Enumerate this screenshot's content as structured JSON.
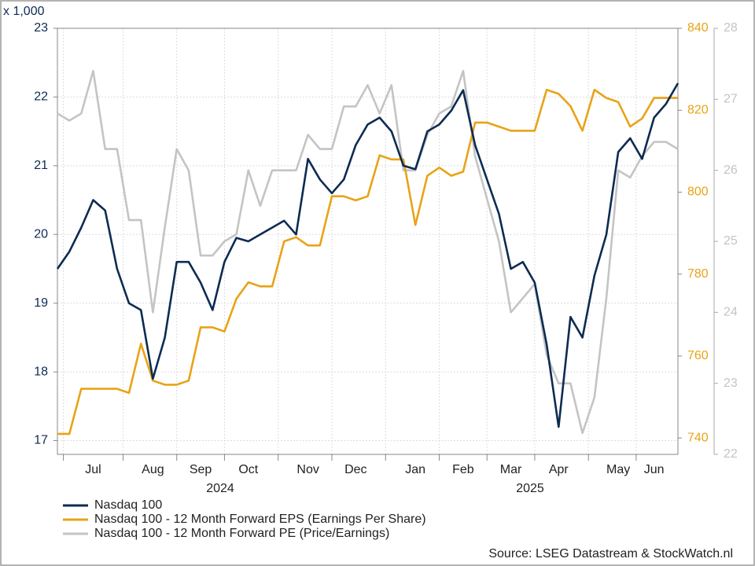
{
  "chart_data": {
    "type": "line",
    "unit_label": "x 1,000",
    "categories": [
      null,
      null,
      null,
      "Jul",
      null,
      null,
      null,
      null,
      "Aug",
      null,
      null,
      null,
      "Sep",
      null,
      null,
      null,
      "Oct",
      null,
      null,
      null,
      null,
      "Nov",
      null,
      null,
      null,
      "Dec",
      null,
      null,
      null,
      null,
      "Jan",
      null,
      null,
      null,
      "Feb",
      null,
      null,
      null,
      "Mar",
      null,
      null,
      null,
      "Apr",
      null,
      null,
      null,
      null,
      "May",
      null,
      null,
      "Jun",
      null,
      null
    ],
    "years": [
      "2024",
      "2025"
    ],
    "series": [
      {
        "name": "Nasdaq 100",
        "color": "#0d2b52",
        "axis": "y",
        "values": [
          19.5,
          19.75,
          20.1,
          20.5,
          20.35,
          19.5,
          19.0,
          18.9,
          17.9,
          18.5,
          19.6,
          19.6,
          19.3,
          18.9,
          19.6,
          19.95,
          19.9,
          20.0,
          20.1,
          20.2,
          20.0,
          21.1,
          20.8,
          20.6,
          20.8,
          21.3,
          21.6,
          21.7,
          21.5,
          21.0,
          20.95,
          21.5,
          21.6,
          21.8,
          22.1,
          21.3,
          20.8,
          20.3,
          19.5,
          19.6,
          19.3,
          18.4,
          17.2,
          18.8,
          18.5,
          19.4,
          20.0,
          21.2,
          21.4,
          21.1,
          21.7,
          21.9,
          22.2
        ]
      },
      {
        "name": "Nasdaq 100 - 12 Month Forward EPS (Earnings Per Share)",
        "color": "#e8a317",
        "axis": "y2",
        "values": [
          741,
          741,
          752,
          752,
          752,
          752,
          751,
          763,
          754,
          753,
          753,
          754,
          767,
          767,
          766,
          774,
          778,
          777,
          777,
          788,
          789,
          787,
          787,
          799,
          799,
          798,
          799,
          809,
          808,
          808,
          792,
          804,
          806,
          804,
          805,
          817,
          817,
          816,
          815,
          815,
          815,
          825,
          824,
          821,
          815,
          825,
          823,
          822,
          816,
          818,
          823,
          823,
          823
        ]
      },
      {
        "name": "Nasdaq 100 - 12 Month Forward PE (Price/Earnings)",
        "color": "#c4c4c4",
        "axis": "y3",
        "values": [
          26.8,
          26.7,
          26.8,
          27.4,
          26.3,
          26.3,
          25.3,
          25.3,
          24.0,
          25.2,
          26.3,
          26.0,
          24.8,
          24.8,
          25.0,
          25.1,
          26.0,
          25.5,
          26.0,
          26.0,
          26.0,
          26.5,
          26.3,
          26.3,
          26.9,
          26.9,
          27.2,
          26.8,
          27.2,
          26.0,
          26.0,
          26.5,
          26.8,
          26.9,
          27.4,
          26.2,
          25.6,
          25.0,
          24.0,
          24.2,
          24.4,
          23.4,
          23.0,
          23.0,
          22.3,
          22.8,
          24.2,
          26.0,
          25.9,
          26.2,
          26.4,
          26.4,
          26.3
        ]
      }
    ],
    "ylim": [
      16.8,
      23
    ],
    "yticks": [
      17,
      18,
      19,
      20,
      21,
      22,
      23
    ],
    "y2lim": [
      736,
      840
    ],
    "y2ticks": [
      740,
      760,
      780,
      800,
      820,
      840
    ],
    "y3lim": [
      22,
      28
    ],
    "y3ticks": [
      22,
      23,
      24,
      25,
      26,
      27,
      28
    ],
    "y_color": "#0d2b52",
    "y2_color": "#e8a317",
    "y3_color": "#c4c4c4",
    "grid": true,
    "source": "Source: LSEG Datastream & StockWatch.nl"
  }
}
